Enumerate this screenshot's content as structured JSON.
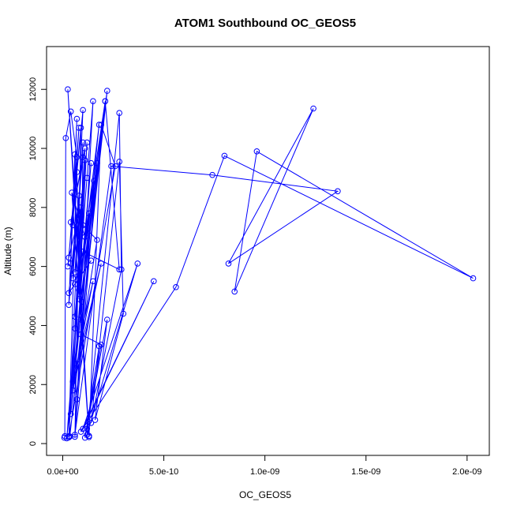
{
  "chart_data": {
    "type": "line",
    "title": "ATOM1 Southbound OC_GEOS5",
    "xlabel": "OC_GEOS5",
    "ylabel": "Altitude (m)",
    "xlim": [
      -8e-11,
      2.11e-09
    ],
    "ylim": [
      -400,
      13450
    ],
    "x_ticks": [
      0,
      5e-10,
      1e-09,
      1.5e-09,
      2e-09
    ],
    "x_tick_labels": [
      "0.0e+00",
      "5.0e-10",
      "1.0e-09",
      "1.5e-09",
      "2.0e-09"
    ],
    "y_ticks": [
      0,
      2000,
      4000,
      6000,
      8000,
      10000,
      12000
    ],
    "y_tick_labels": [
      "0",
      "2000",
      "4000",
      "6000",
      "8000",
      "10000",
      "12000"
    ],
    "grid": false,
    "legend": "none",
    "series": [
      {
        "color": "#0000ff",
        "marker": "open-circle",
        "points": [
          [
            8e-12,
            200
          ],
          [
            1e-11,
            250
          ],
          [
            1.5e-11,
            10350
          ],
          [
            4e-11,
            11250
          ],
          [
            7e-11,
            9700
          ],
          [
            3e-11,
            210
          ],
          [
            1e-10,
            11300
          ],
          [
            2.5e-11,
            6000
          ],
          [
            9e-11,
            10700
          ],
          [
            6e-11,
            230
          ],
          [
            1.5e-10,
            11600
          ],
          [
            1.2e-10,
            9000
          ],
          [
            2e-11,
            180
          ],
          [
            1.8e-10,
            10800
          ],
          [
            8e-11,
            5200
          ],
          [
            2.2e-10,
            11950
          ],
          [
            3.5e-11,
            240
          ],
          [
            2.1e-10,
            11600
          ],
          [
            1.1e-10,
            7000
          ],
          [
            4.5e-11,
            8500
          ],
          [
            1.3e-10,
            260
          ],
          [
            2.5e-11,
            12000
          ],
          [
            9.5e-11,
            4800
          ],
          [
            1.7e-10,
            9500
          ],
          [
            6e-11,
            300
          ],
          [
            2.4e-10,
            9400
          ],
          [
            7.4e-10,
            9100
          ],
          [
            1.36e-09,
            8550
          ],
          [
            8.2e-10,
            6100
          ],
          [
            1.24e-09,
            11350
          ],
          [
            8.5e-10,
            5150
          ],
          [
            9.6e-10,
            9900
          ],
          [
            2.03e-09,
            5600
          ],
          [
            8e-10,
            9750
          ],
          [
            5.6e-10,
            5300
          ],
          [
            9e-11,
            400
          ],
          [
            4.5e-10,
            5500
          ],
          [
            1e-10,
            500
          ],
          [
            3.7e-10,
            6100
          ],
          [
            1.2e-10,
            300
          ],
          [
            2.8e-10,
            11200
          ],
          [
            2.9e-10,
            5900
          ],
          [
            1.4e-10,
            700
          ],
          [
            2.8e-10,
            9550
          ],
          [
            3e-10,
            4400
          ],
          [
            1.6e-10,
            800
          ],
          [
            2.2e-10,
            4200
          ],
          [
            1.1e-10,
            200
          ],
          [
            1.8e-10,
            3300
          ],
          [
            1.2e-10,
            500
          ],
          [
            1.9e-10,
            3350
          ],
          [
            9e-11,
            3700
          ],
          [
            1.5e-10,
            5500
          ],
          [
            7e-11,
            2700
          ],
          [
            1.9e-10,
            6100
          ],
          [
            5e-11,
            1800
          ],
          [
            1.7e-10,
            6900
          ],
          [
            1e-10,
            7400
          ],
          [
            6e-11,
            4300
          ],
          [
            1.3e-10,
            7800
          ],
          [
            7e-11,
            1500
          ],
          [
            1.55e-10,
            8900
          ],
          [
            4e-11,
            1000
          ],
          [
            1.4e-10,
            9500
          ],
          [
            8e-11,
            4900
          ],
          [
            1.2e-10,
            10200
          ],
          [
            5e-11,
            2100
          ],
          [
            2.1e-10,
            11600
          ],
          [
            2.8e-10,
            5900
          ],
          [
            1e-10,
            6500
          ],
          [
            6e-11,
            5400
          ],
          [
            1.4e-10,
            6200
          ],
          [
            3e-11,
            5100
          ],
          [
            1e-10,
            9700
          ],
          [
            4e-11,
            7500
          ],
          [
            1.1e-10,
            10000
          ],
          [
            6e-11,
            3900
          ],
          [
            9e-11,
            8000
          ],
          [
            3e-11,
            6300
          ],
          [
            8e-11,
            10700
          ],
          [
            5e-11,
            7400
          ],
          [
            7e-11,
            11000
          ],
          [
            4e-11,
            6100
          ],
          [
            6e-11,
            9800
          ],
          [
            3e-11,
            4700
          ],
          [
            8e-11,
            8400
          ],
          [
            5e-11,
            5600
          ],
          [
            7e-11,
            9200
          ],
          [
            9e-11,
            4200
          ],
          [
            1e-10,
            10200
          ],
          [
            6e-11,
            5800
          ],
          [
            1.1e-10,
            9600
          ],
          [
            3e-11,
            250
          ],
          [
            2.6e-10,
            9400
          ],
          [
            1.9e-10,
            10800
          ],
          [
            1.3e-10,
            220
          ]
        ]
      }
    ]
  }
}
